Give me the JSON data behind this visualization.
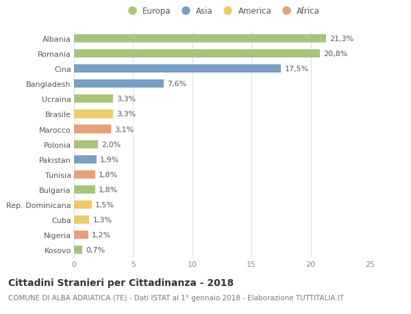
{
  "countries": [
    "Albania",
    "Romania",
    "Cina",
    "Bangladesh",
    "Ucraina",
    "Brasile",
    "Marocco",
    "Polonia",
    "Pakistan",
    "Tunisia",
    "Bulgaria",
    "Rep. Dominicana",
    "Cuba",
    "Nigeria",
    "Kosovo"
  ],
  "values": [
    21.3,
    20.8,
    17.5,
    7.6,
    3.3,
    3.3,
    3.1,
    2.0,
    1.9,
    1.8,
    1.8,
    1.5,
    1.3,
    1.2,
    0.7
  ],
  "labels": [
    "21,3%",
    "20,8%",
    "17,5%",
    "7,6%",
    "3,3%",
    "3,3%",
    "3,1%",
    "2,0%",
    "1,9%",
    "1,8%",
    "1,8%",
    "1,5%",
    "1,3%",
    "1,2%",
    "0,7%"
  ],
  "continents": [
    "Europa",
    "Europa",
    "Asia",
    "Asia",
    "Europa",
    "America",
    "Africa",
    "Europa",
    "Asia",
    "Africa",
    "Europa",
    "America",
    "America",
    "Africa",
    "Europa"
  ],
  "continent_colors": {
    "Europa": "#a8c47a",
    "Asia": "#7a9fc4",
    "America": "#f0c96b",
    "Africa": "#e8a07a"
  },
  "legend_order": [
    "Europa",
    "Asia",
    "America",
    "Africa"
  ],
  "xlim": [
    0,
    25
  ],
  "title": "Cittadini Stranieri per Cittadinanza - 2018",
  "subtitle": "COMUNE DI ALBA ADRIATICA (TE) - Dati ISTAT al 1° gennaio 2018 - Elaborazione TUTTITALIA.IT",
  "background_color": "#ffffff",
  "grid_color": "#e0e0e0",
  "bar_height": 0.55,
  "title_fontsize": 10,
  "subtitle_fontsize": 7.5,
  "label_fontsize": 8,
  "tick_fontsize": 8,
  "legend_fontsize": 8.5
}
